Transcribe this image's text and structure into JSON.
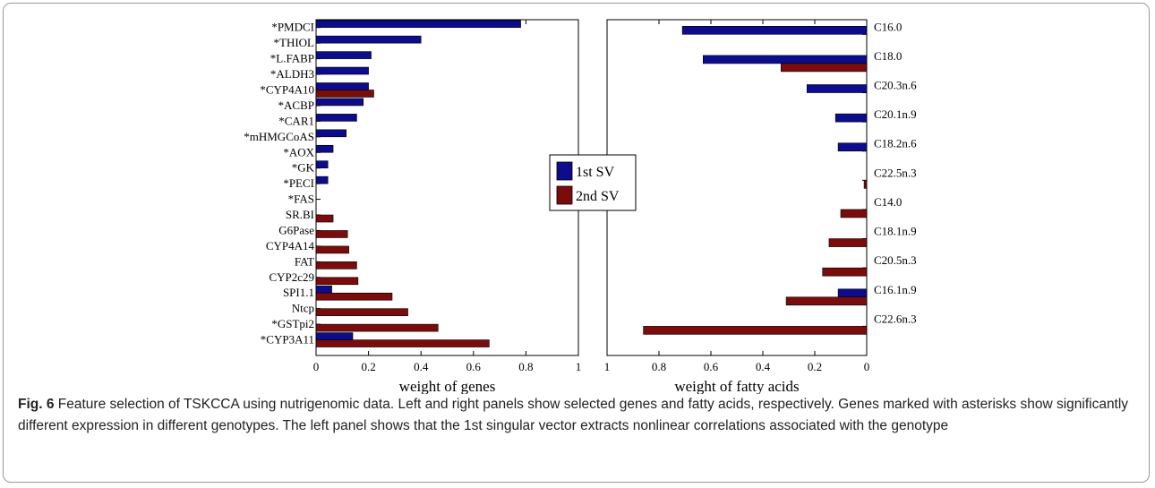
{
  "chart_data": [
    {
      "type": "bar",
      "orientation": "horizontal",
      "xlabel": "weight of genes",
      "xlim": [
        0,
        1
      ],
      "xticks": [
        "0",
        "0.2",
        "0.4",
        "0.6",
        "0.8",
        "1"
      ],
      "categories": [
        "*PMDCI",
        "*THIOL",
        "*L.FABP",
        "*ALDH3",
        "*CYP4A10",
        "*ACBP",
        "*CAR1",
        "*mHMGCoAS",
        "*AOX",
        "*GK",
        "*PECI",
        "*FAS",
        "SR.BI",
        "G6Pase",
        "CYP4A14",
        "FAT",
        "CYP2c29",
        "SPI1.1",
        "Ntcp",
        "*GSTpi2",
        "*CYP3A11"
      ],
      "series": [
        {
          "name": "1st SV",
          "color": "#0c0c8c",
          "values": [
            0.78,
            0.4,
            0.21,
            0.2,
            0.2,
            0.18,
            0.155,
            0.115,
            0.065,
            0.045,
            0.045,
            0.0,
            0.0,
            0.0,
            0.0,
            0.0,
            0.0,
            0.06,
            0.0,
            0.0,
            0.14
          ]
        },
        {
          "name": "2nd SV",
          "color": "#7a0c0c",
          "values": [
            0.0,
            0.0,
            0.0,
            0.0,
            0.22,
            0.0,
            0.0,
            0.0,
            0.0,
            0.0,
            0.0,
            0.0,
            0.065,
            0.12,
            0.125,
            0.155,
            0.16,
            0.29,
            0.35,
            0.465,
            0.66
          ]
        }
      ]
    },
    {
      "type": "bar",
      "orientation": "horizontal",
      "xlabel": "weight of fatty acids",
      "xlim": [
        0,
        1
      ],
      "x_reversed": true,
      "xticks": [
        "1",
        "0.8",
        "0.6",
        "0.4",
        "0.2",
        "0"
      ],
      "categories": [
        "C16.0",
        "C18.0",
        "C20.3n.6",
        "C20.1n.9",
        "C18.2n.6",
        "C22.5n.3",
        "C14.0",
        "C18.1n.9",
        "C20.5n.3",
        "C16.1n.9",
        "C22.6n.3"
      ],
      "series": [
        {
          "name": "1st SV",
          "color": "#0c0c8c",
          "values": [
            0.71,
            0.63,
            0.23,
            0.12,
            0.11,
            0.0,
            0.0,
            0.0,
            0.0,
            0.11,
            0.0
          ]
        },
        {
          "name": "2nd SV",
          "color": "#7a0c0c",
          "values": [
            0.0,
            0.33,
            0.0,
            0.0,
            0.0,
            0.01,
            0.1,
            0.145,
            0.17,
            0.31,
            0.86
          ]
        }
      ]
    }
  ],
  "legend": {
    "items": [
      {
        "label": "1st SV",
        "color": "#0c0c8c"
      },
      {
        "label": "2nd SV",
        "color": "#7a0c0c"
      }
    ]
  },
  "caption": {
    "label": "Fig. 6",
    "text": "Feature selection of TSKCCA using nutrigenomic data. Left and right panels show selected genes and fatty acids, respectively. Genes marked with asterisks show significantly different expression in different genotypes. The left panel shows that the 1st singular vector extracts nonlinear correlations associated with the genotype"
  }
}
